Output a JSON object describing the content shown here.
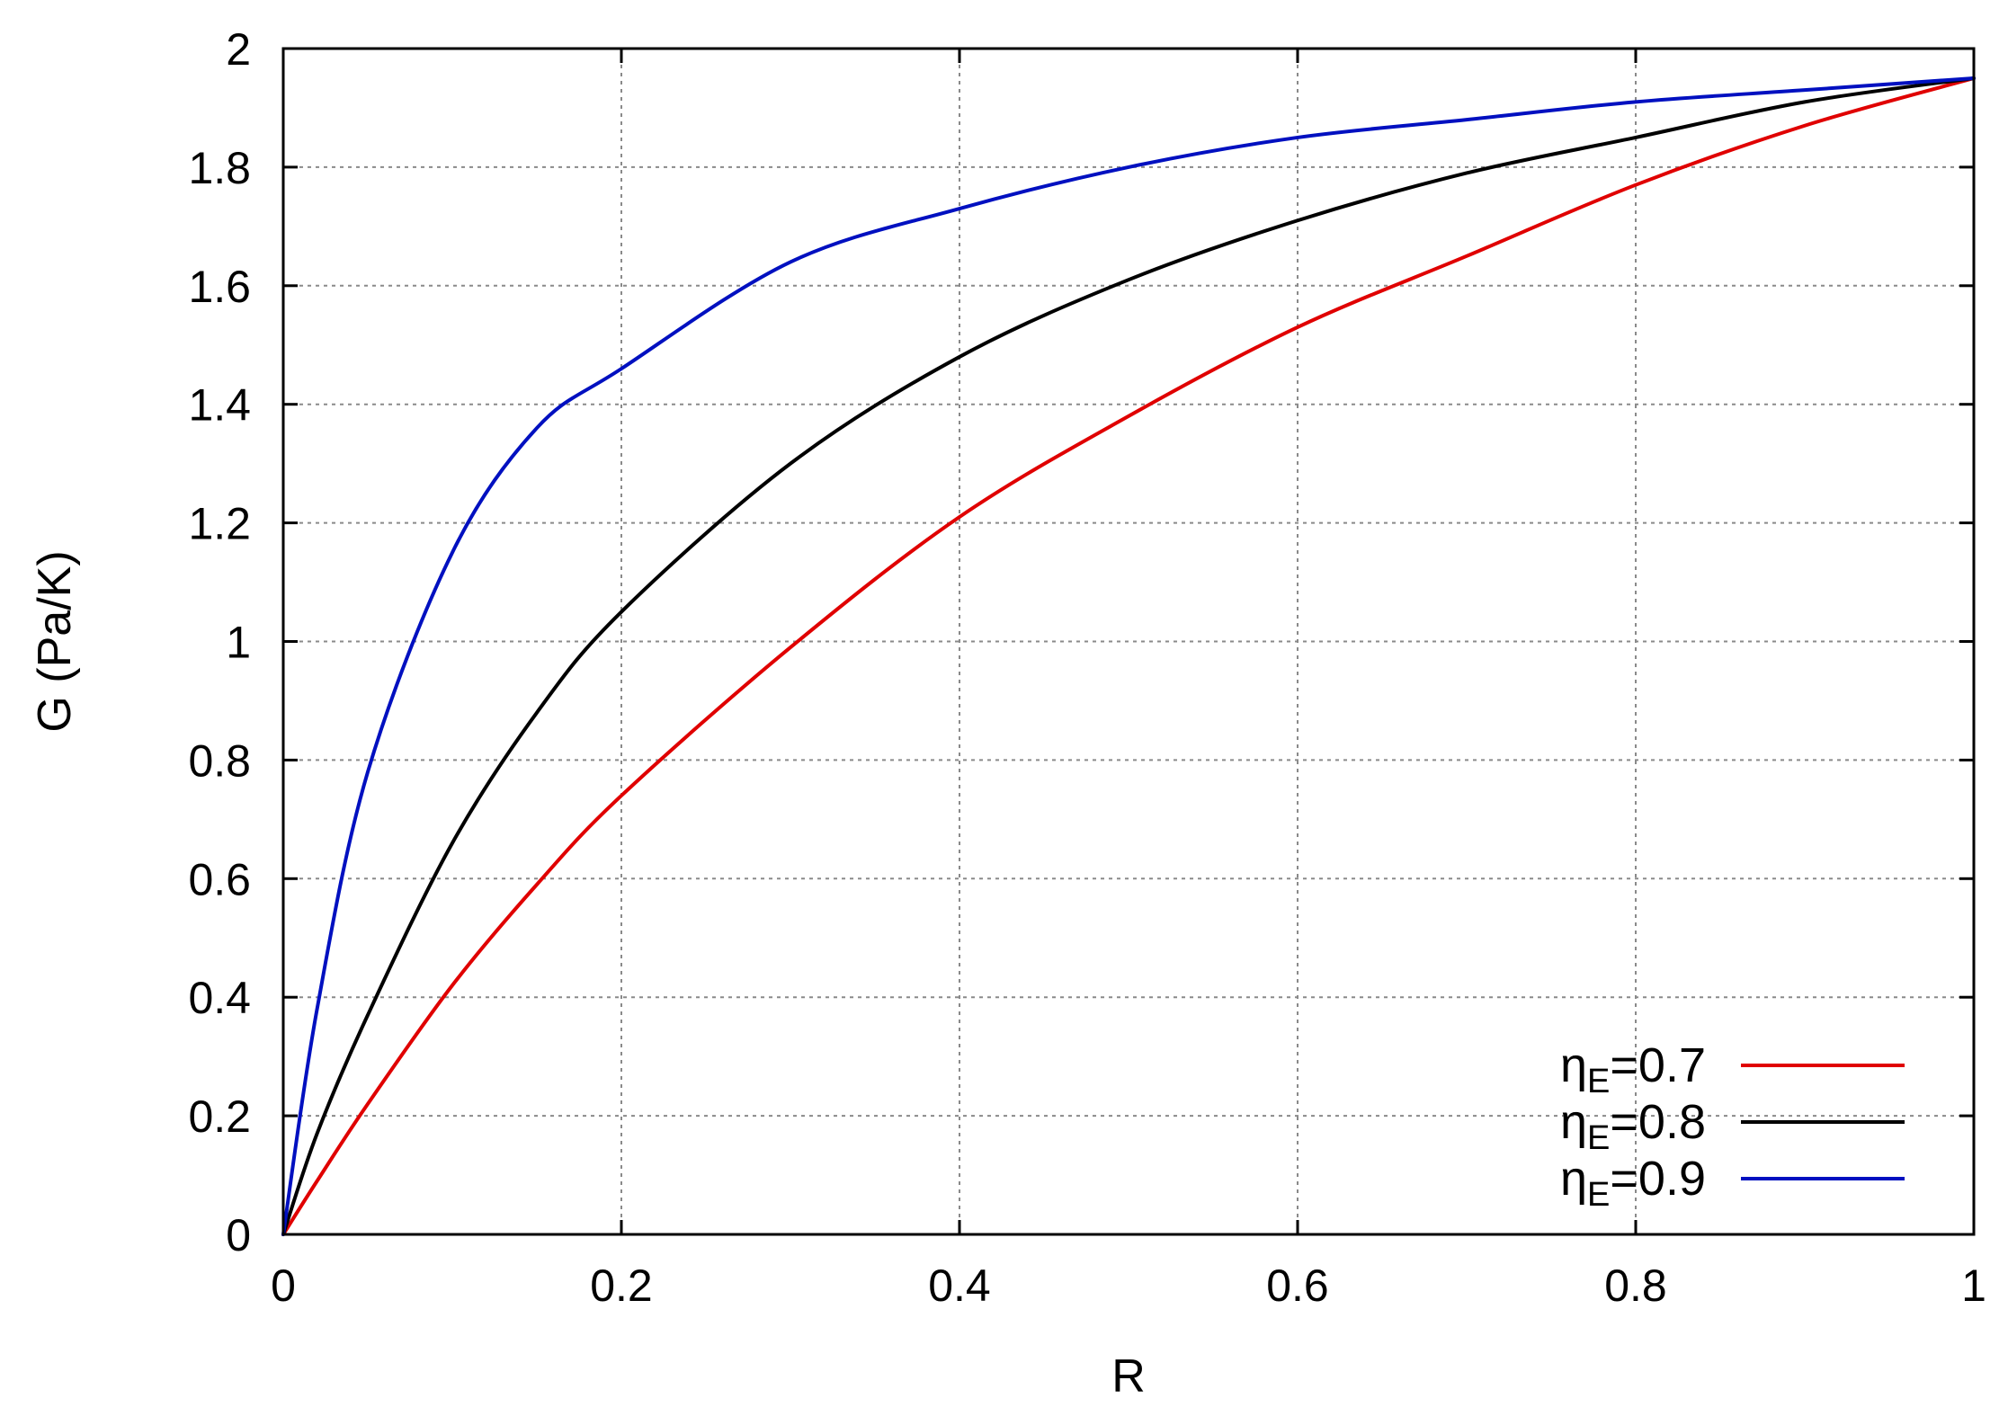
{
  "chart_data": {
    "type": "line",
    "title": "",
    "xlabel": "R",
    "ylabel": "G (Pa/K)",
    "xlim": [
      0,
      1
    ],
    "ylim": [
      0,
      2
    ],
    "xticks": [
      0,
      0.2,
      0.4,
      0.6,
      0.8,
      1
    ],
    "xtick_labels": [
      "0",
      "0.2",
      "0.4",
      "0.6",
      "0.8",
      "1"
    ],
    "yticks": [
      0,
      0.2,
      0.4,
      0.6,
      0.8,
      1,
      1.2,
      1.4,
      1.6,
      1.8,
      2
    ],
    "ytick_labels": [
      "0",
      "0.2",
      "0.4",
      "0.6",
      "0.8",
      "1",
      "1.2",
      "1.4",
      "1.6",
      "1.8",
      "2"
    ],
    "grid": true,
    "legend_position": "bottom-right",
    "x": [
      0,
      0.02,
      0.05,
      0.1,
      0.15,
      0.2,
      0.3,
      0.4,
      0.5,
      0.6,
      0.7,
      0.8,
      0.9,
      1.0
    ],
    "series": [
      {
        "name_main": "η",
        "name_sub": "E",
        "name_value": "=0.7",
        "color": "#e00000",
        "values": [
          0,
          0.09,
          0.22,
          0.42,
          0.59,
          0.74,
          0.99,
          1.21,
          1.38,
          1.53,
          1.65,
          1.77,
          1.87,
          1.95
        ]
      },
      {
        "name_main": "η",
        "name_sub": "E",
        "name_value": "=0.8",
        "color": "#000000",
        "values": [
          0,
          0.17,
          0.37,
          0.66,
          0.88,
          1.05,
          1.3,
          1.48,
          1.61,
          1.71,
          1.79,
          1.85,
          1.91,
          1.95
        ]
      },
      {
        "name_main": "η",
        "name_sub": "E",
        "name_value": "=0.9",
        "color": "#0010c0",
        "values": [
          0,
          0.38,
          0.78,
          1.15,
          1.36,
          1.46,
          1.64,
          1.73,
          1.8,
          1.85,
          1.88,
          1.91,
          1.93,
          1.95
        ]
      }
    ]
  }
}
